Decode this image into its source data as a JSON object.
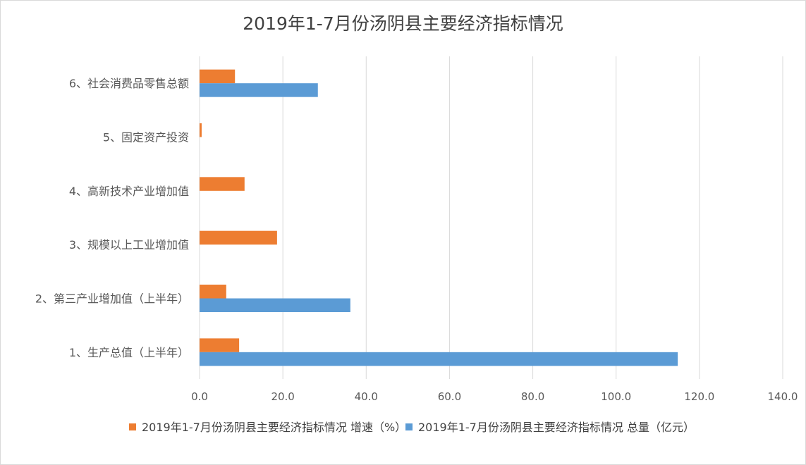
{
  "chart_data": {
    "type": "bar",
    "orientation": "horizontal",
    "title": "2019年1-7月份汤阴县主要经济指标情况",
    "categories": [
      "1、生产总值（上半年）",
      "2、第三产业增加值（上半年）",
      "3、规模以上工业增加值",
      "4、高新技术产业增加值",
      "5、固定资产投资",
      "6、社会消费品零售总额"
    ],
    "series": [
      {
        "name": "2019年1-7月份汤阴县主要经济指标情况 增速（%）",
        "color": "#ed7d31",
        "values": [
          9.5,
          6.4,
          18.6,
          10.8,
          0.5,
          8.5
        ]
      },
      {
        "name": "2019年1-7月份汤阴县主要经济指标情况 总量（亿元）",
        "color": "#5b9bd5",
        "values": [
          114.8,
          36.2,
          null,
          null,
          null,
          28.4
        ]
      }
    ],
    "xlim": [
      0,
      140
    ],
    "xticks": [
      "0.0",
      "20.0",
      "40.0",
      "60.0",
      "80.0",
      "100.0",
      "120.0",
      "140.0"
    ],
    "grid": true,
    "legend_position": "bottom"
  }
}
